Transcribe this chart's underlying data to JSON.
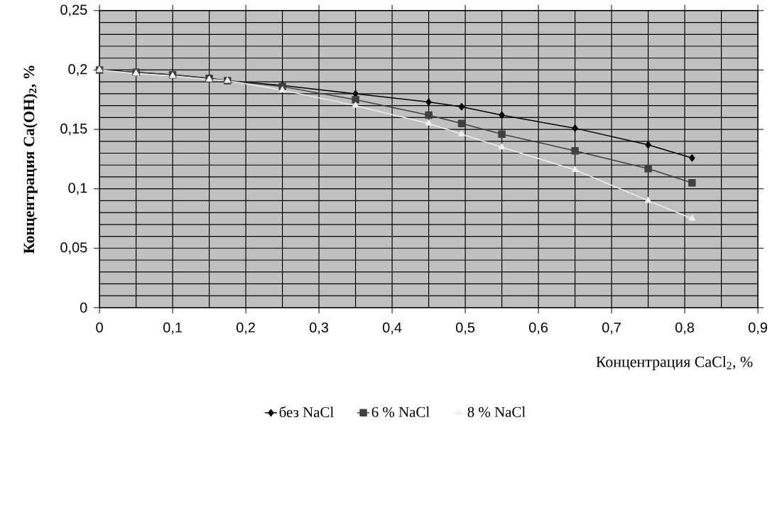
{
  "chart_data": {
    "type": "line",
    "xlabel": "Концентрация CaCl$_{2}$, %",
    "ylabel": "**Концентрация Ca(OH)$_{2}$, %**",
    "x": [
      0,
      0.05,
      0.1,
      0.15,
      0.175,
      0.25,
      0.35,
      0.45,
      0.495,
      0.55,
      0.65,
      0.75,
      0.81
    ],
    "series": [
      {
        "name": "без NaCl",
        "color": "#000000",
        "marker": "diamond",
        "values": [
          0.2,
          0.198,
          0.196,
          0.193,
          0.191,
          0.187,
          0.18,
          0.173,
          0.169,
          0.162,
          0.151,
          0.137,
          0.126
        ]
      },
      {
        "name": "6 % NaCl",
        "color": "#404040",
        "marker": "square",
        "values": [
          0.2,
          0.198,
          0.196,
          0.193,
          0.191,
          0.186,
          0.175,
          0.162,
          0.155,
          0.146,
          0.132,
          0.117,
          0.105
        ]
      },
      {
        "name": "8 % NaCl",
        "color": "#f0f0f0",
        "marker": "triangle",
        "values": [
          0.2,
          0.197,
          0.195,
          0.192,
          0.191,
          0.183,
          0.17,
          0.155,
          0.146,
          0.135,
          0.116,
          0.09,
          0.075
        ]
      }
    ],
    "xlim": [
      0,
      0.9
    ],
    "ylim": [
      0,
      0.25
    ],
    "xticks": [
      0,
      {
        "value": 0.1,
        "label": "0,1"
      },
      {
        "value": 0.2,
        "label": "0,2"
      },
      {
        "value": 0.3,
        "label": "0,3"
      },
      {
        "value": 0.4,
        "label": "0,4"
      },
      {
        "value": 0.5,
        "label": "0,5"
      },
      {
        "value": 0.6,
        "label": "0,6"
      },
      {
        "value": 0.7,
        "label": "0,7"
      },
      {
        "value": 0.8,
        "label": "0,8"
      },
      {
        "value": 0.9,
        "label": "0,9"
      }
    ],
    "yticks": [
      0,
      {
        "value": 0.05,
        "label": "0,05"
      },
      {
        "value": 0.1,
        "label": "0,1"
      },
      {
        "value": 0.15,
        "label": "0,15"
      },
      {
        "value": 0.2,
        "label": "0,2"
      },
      {
        "value": 0.25,
        "label": "0,25"
      }
    ],
    "grid": true,
    "legend": "bottom",
    "line_style": "solid"
  }
}
